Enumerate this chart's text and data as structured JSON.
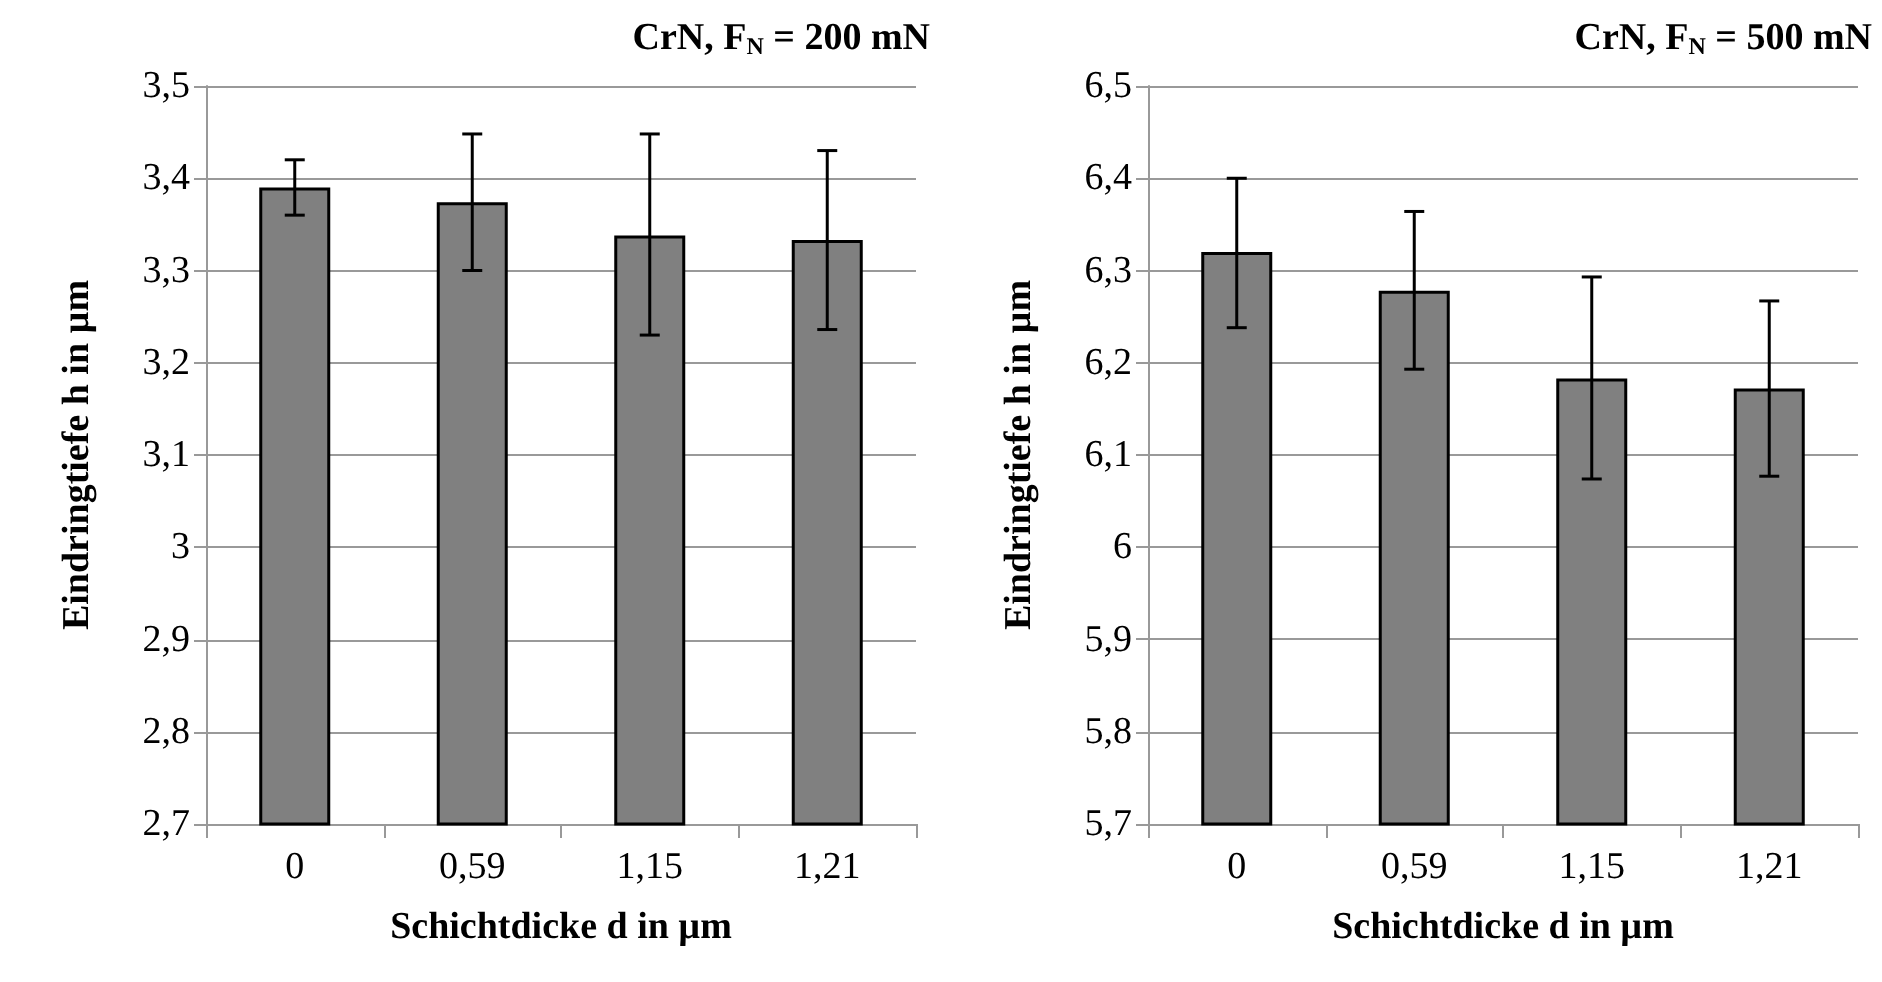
{
  "chart_data": [
    {
      "type": "bar",
      "title": "CrN, F$_{N}$ = 200 mN",
      "xlabel": "Schichtdicke d in µm",
      "ylabel": "Eindringtiefe h in µm",
      "categories": [
        "0",
        "0,59",
        "1,15",
        "1,21"
      ],
      "values": [
        3.39,
        3.374,
        3.338,
        3.333
      ],
      "color": "#808080",
      "errors": [
        [
          3.36,
          3.42
        ],
        [
          3.3,
          3.448
        ],
        [
          3.23,
          3.448
        ],
        [
          3.236,
          3.43
        ]
      ],
      "ylim": [
        2.7,
        3.5
      ],
      "yticks": [
        {
          "value": 2.7,
          "label": "2,7"
        },
        {
          "value": 2.8,
          "label": "2,8"
        },
        {
          "value": 2.9,
          "label": "2,9"
        },
        3,
        {
          "value": 3.1,
          "label": "3,1"
        },
        {
          "value": 3.2,
          "label": "3,2"
        },
        {
          "value": 3.3,
          "label": "3,3"
        },
        {
          "value": 3.4,
          "label": "3,4"
        },
        {
          "value": 3.5,
          "label": "3,5"
        }
      ],
      "grid": "y"
    },
    {
      "type": "bar",
      "title": "CrN, F$_{N}$ = 500 mN",
      "xlabel": "Schichtdicke d in µm",
      "ylabel": "Eindringtiefe h in µm",
      "categories": [
        "0",
        "0,59",
        "1,15",
        "1,21"
      ],
      "values": [
        6.32,
        6.278,
        6.183,
        6.172
      ],
      "color": "#808080",
      "errors": [
        [
          6.238,
          6.4
        ],
        [
          6.193,
          6.364
        ],
        [
          6.074,
          6.293
        ],
        [
          6.077,
          6.267
        ]
      ],
      "ylim": [
        5.7,
        6.5
      ],
      "yticks": [
        {
          "value": 5.7,
          "label": "5,7"
        },
        {
          "value": 5.8,
          "label": "5,8"
        },
        {
          "value": 5.9,
          "label": "5,9"
        },
        6,
        {
          "value": 6.1,
          "label": "6,1"
        },
        {
          "value": 6.2,
          "label": "6,2"
        },
        {
          "value": 6.3,
          "label": "6,3"
        },
        {
          "value": 6.4,
          "label": "6,4"
        },
        {
          "value": 6.5,
          "label": "6,5"
        }
      ],
      "grid": "y"
    }
  ]
}
